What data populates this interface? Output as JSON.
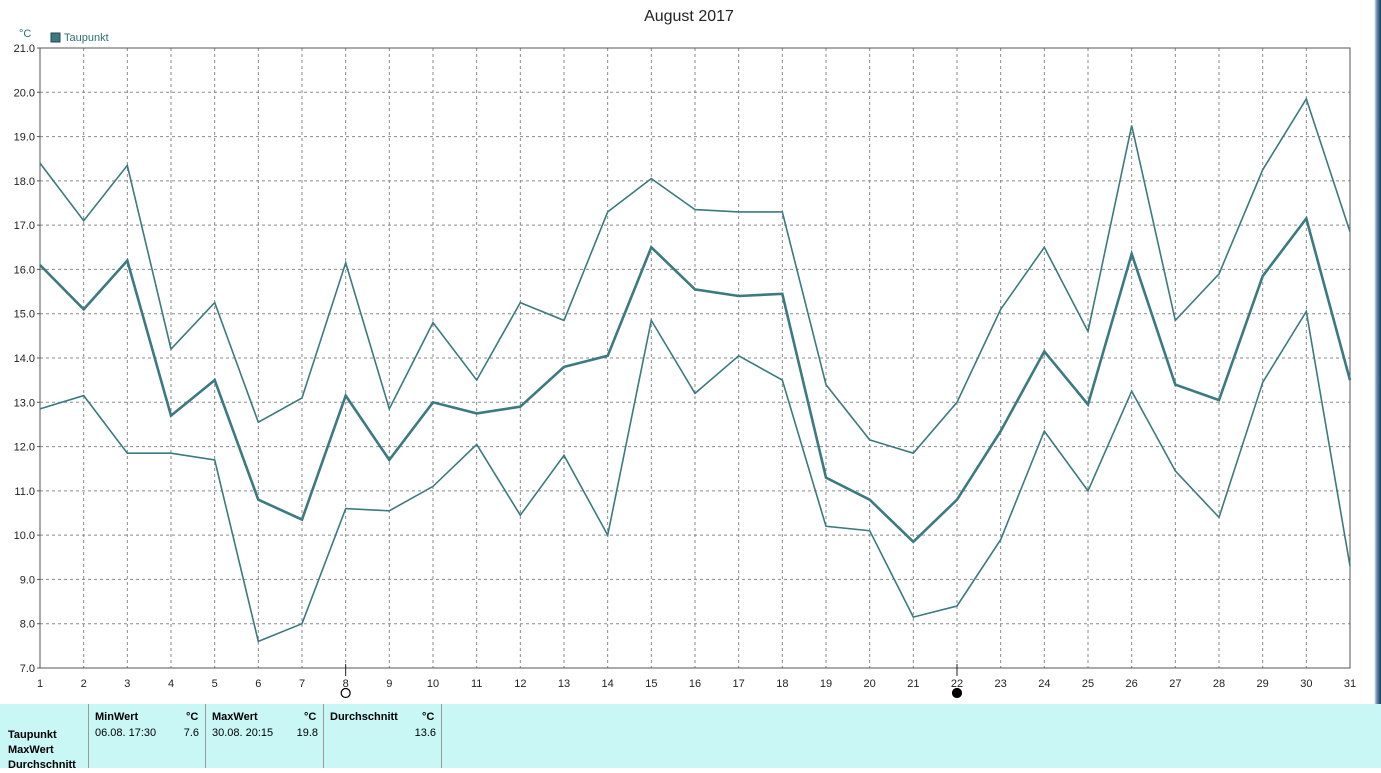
{
  "chart_data": {
    "type": "line",
    "title": "August 2017",
    "ylabel": "°C",
    "ylim": [
      7.0,
      21.0
    ],
    "yticks": [
      "7.0",
      "8.0",
      "9.0",
      "10.0",
      "11.0",
      "12.0",
      "13.0",
      "14.0",
      "15.0",
      "16.0",
      "17.0",
      "18.0",
      "19.0",
      "20.0",
      "21.0"
    ],
    "x": [
      1,
      2,
      3,
      4,
      5,
      6,
      7,
      8,
      9,
      10,
      11,
      12,
      13,
      14,
      15,
      16,
      17,
      18,
      19,
      20,
      21,
      22,
      23,
      24,
      25,
      26,
      27,
      28,
      29,
      30,
      31
    ],
    "legend": [
      "Taupunkt"
    ],
    "legend_position": "top-left",
    "grid": true,
    "color": "#3a7a80",
    "series": [
      {
        "name": "Taupunkt",
        "values": [
          16.1,
          15.1,
          16.2,
          12.7,
          13.5,
          10.8,
          10.35,
          13.15,
          11.7,
          13.0,
          12.75,
          12.9,
          13.8,
          14.05,
          16.5,
          15.55,
          15.4,
          15.45,
          11.3,
          10.8,
          9.85,
          10.8,
          12.35,
          14.15,
          12.95,
          16.35,
          13.4,
          13.05,
          15.85,
          17.15,
          13.5
        ]
      },
      {
        "name": "",
        "values": [
          18.4,
          17.1,
          18.35,
          14.2,
          15.25,
          12.55,
          13.1,
          16.15,
          12.85,
          14.8,
          13.5,
          15.25,
          14.85,
          17.3,
          18.05,
          17.35,
          17.3,
          17.3,
          13.4,
          12.15,
          11.85,
          13.0,
          15.1,
          16.5,
          14.6,
          19.25,
          14.85,
          15.9,
          18.25,
          19.85,
          16.85
        ]
      },
      {
        "name": "",
        "values": [
          12.85,
          13.15,
          11.85,
          11.85,
          11.7,
          7.6,
          8.0,
          10.6,
          10.55,
          11.1,
          12.05,
          10.45,
          11.8,
          10.0,
          14.85,
          13.2,
          14.05,
          13.5,
          10.2,
          10.1,
          8.15,
          8.4,
          9.9,
          12.35,
          11.0,
          13.25,
          11.45,
          10.4,
          13.45,
          15.05,
          9.3
        ]
      }
    ],
    "moon_markers": [
      {
        "day": 8,
        "phase": "full"
      },
      {
        "day": 22,
        "phase": "new"
      }
    ]
  },
  "stats": {
    "row_labels": [
      "Taupunkt",
      "MaxWert",
      "Durchschnitt"
    ],
    "min": {
      "header": "MinWert",
      "unit": "°C",
      "time": "06.08.  17:30",
      "value": "7.6"
    },
    "max": {
      "header": "MaxWert",
      "unit": "°C",
      "time": "30.08.  20:15",
      "value": "19.8"
    },
    "avg": {
      "header": "Durchschnitt",
      "unit": "°C",
      "value": "13.6"
    }
  }
}
